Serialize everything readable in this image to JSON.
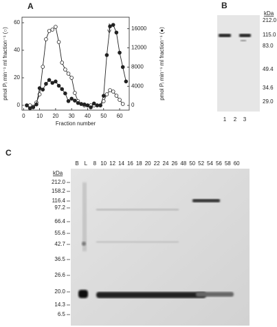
{
  "chart_data": {
    "type": "line",
    "panel_label": "A",
    "xlabel": "Fraction number",
    "ylabel": "pmol Pᵢ min⁻¹ ml fraction⁻¹ (○)",
    "y2label": "pmol Pᵢ min⁻¹ ml fraction⁻¹ (●)",
    "x": [
      2,
      4,
      6,
      8,
      10,
      12,
      14,
      16,
      18,
      20,
      22,
      24,
      26,
      28,
      30,
      32,
      34,
      36,
      38,
      40,
      42,
      44,
      46,
      48,
      50,
      52,
      54,
      56,
      58,
      60,
      62,
      64
    ],
    "series": [
      {
        "name": "open",
        "marker": "open",
        "color": "#222222",
        "axis": "y",
        "values": [
          0,
          0,
          -1,
          2,
          8,
          28,
          48,
          54,
          55,
          57,
          46,
          31,
          26,
          23,
          20,
          9,
          3,
          1,
          0,
          0,
          0,
          0,
          0,
          0,
          3,
          8,
          11,
          10,
          7,
          4,
          1,
          null
        ]
      },
      {
        "name": "filled",
        "marker": "filled",
        "color": "#222222",
        "axis": "y2",
        "values": [
          0,
          -600,
          -400,
          200,
          3600,
          3300,
          4500,
          5300,
          4700,
          5000,
          4100,
          3400,
          2500,
          900,
          1400,
          1000,
          500,
          300,
          200,
          0,
          -400,
          400,
          0,
          0,
          2000,
          10500,
          16500,
          16800,
          15200,
          11000,
          8000,
          5000
        ]
      }
    ],
    "xlim": [
      -1,
      66
    ],
    "xticks": [
      0,
      10,
      20,
      30,
      40,
      50,
      60
    ],
    "ylim": [
      -3.5,
      64
    ],
    "yticks": [
      0,
      20,
      40,
      60
    ],
    "y2lim": [
      -990,
      18400
    ],
    "y2ticks": [
      0,
      4000,
      8000,
      12000,
      16000
    ]
  },
  "panel_b": {
    "label": "B",
    "unit": "kDa",
    "markers": [
      "212.0",
      "115.0",
      "83.0",
      "49.4",
      "34.6",
      "29.0"
    ],
    "lanes": [
      "1",
      "2",
      "3"
    ]
  },
  "panel_c": {
    "label": "C",
    "unit": "kDa",
    "markers": [
      "212.0",
      "158.2",
      "116.4",
      "97.2",
      "66.4",
      "55.6",
      "42.7",
      "36.5",
      "26.6",
      "20.0",
      "14.3",
      "6.5"
    ],
    "lanes": [
      "B",
      "L",
      "8",
      "10",
      "12",
      "14",
      "16",
      "18",
      "20",
      "22",
      "24",
      "26",
      "48",
      "50",
      "52",
      "54",
      "56",
      "58",
      "60"
    ]
  }
}
